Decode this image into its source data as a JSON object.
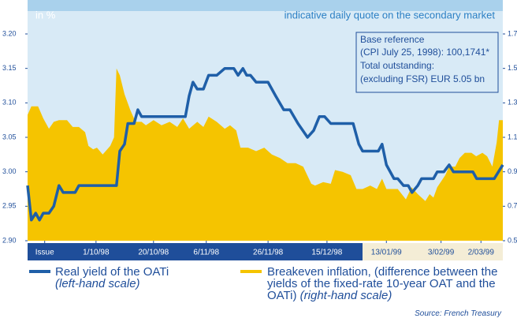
{
  "chart_data": {
    "type": "line_area",
    "title": "indicative daily quote on the secondary market",
    "y_label": "in %",
    "annotations": [
      "Base reference",
      "(CPI July 25, 1998): 100,1741*",
      "Total outstanding:",
      "(excluding FSR) EUR 5.05 bn"
    ],
    "source": "Source: French Treasury",
    "xlim": [
      0,
      100
    ],
    "xticks": [
      {
        "value": 3.6,
        "label": "Issue"
      },
      {
        "value": 14.4,
        "label": "1/10/98"
      },
      {
        "value": 26.5,
        "label": "20/10/98"
      },
      {
        "value": 37.6,
        "label": "6/11/98"
      },
      {
        "value": 50.6,
        "label": "26/11/98"
      },
      {
        "value": 63,
        "label": "15/12/98"
      },
      {
        "value": 75.5,
        "label": "13/01/99"
      },
      {
        "value": 87,
        "label": "3/02/99"
      },
      {
        "value": 95.4,
        "label": "2/03/99"
      }
    ],
    "ylim": [
      2.9,
      3.2
    ],
    "yticks": [
      {
        "value": 3.2,
        "label": "3.20"
      },
      {
        "value": 3.15,
        "label": "3.15"
      },
      {
        "value": 3.1,
        "label": "3.10"
      },
      {
        "value": 3.05,
        "label": "3.05"
      },
      {
        "value": 3,
        "label": "3.00"
      },
      {
        "value": 2.95,
        "label": "2.95"
      },
      {
        "value": 2.9,
        "label": "2.90"
      }
    ],
    "y2lim": [
      0.5,
      1.7
    ],
    "y2ticks": [
      1.7,
      1.5,
      1.3,
      1.1,
      0.9,
      0.7,
      0.5
    ],
    "grid": false,
    "series": [
      {
        "name": "Real yield of the OATi",
        "note": "(left-hand scale)",
        "kind": "line",
        "color": "#1f5fa8",
        "axis": "y",
        "x": [
          0,
          0.8,
          1.7,
          2.5,
          3.3,
          4.5,
          5.5,
          6.6,
          7.5,
          10.0,
          10.8,
          18.7,
          19.4,
          20.4,
          21.1,
          22.4,
          23.2,
          24.0,
          33.2,
          34.0,
          34.8,
          35.7,
          37.0,
          38.1,
          39.8,
          41.5,
          43.4,
          44.3,
          45.3,
          46.1,
          46.9,
          48.1,
          50.6,
          52.2,
          53.9,
          55.2,
          56.9,
          58.9,
          60.2,
          61.4,
          62.5,
          63.8,
          68.5,
          69.7,
          70.5,
          73.8,
          74.6,
          75.5,
          77.1,
          77.9,
          79.1,
          80.1,
          80.9,
          82.1,
          82.9,
          85.4,
          86.2,
          87.6,
          88.7,
          89.6,
          93.7,
          94.5,
          98.2,
          100
        ],
        "values": [
          2.98,
          2.93,
          2.94,
          2.93,
          2.94,
          2.94,
          2.95,
          2.98,
          2.97,
          2.97,
          2.98,
          2.98,
          3.03,
          3.04,
          3.07,
          3.07,
          3.09,
          3.08,
          3.08,
          3.11,
          3.13,
          3.12,
          3.12,
          3.14,
          3.14,
          3.15,
          3.15,
          3.14,
          3.15,
          3.14,
          3.14,
          3.13,
          3.13,
          3.11,
          3.09,
          3.09,
          3.07,
          3.05,
          3.06,
          3.08,
          3.08,
          3.07,
          3.07,
          3.04,
          3.03,
          3.03,
          3.04,
          3.01,
          2.99,
          2.99,
          2.98,
          2.98,
          2.97,
          2.98,
          2.99,
          2.99,
          3.0,
          3.0,
          3.01,
          3.0,
          3.0,
          2.99,
          2.99,
          3.01
        ]
      },
      {
        "name": "Breakeven inflation, (difference between the yields of the fixed-rate 10-year OAT and the OATi)",
        "note": "(right-hand scale)",
        "kind": "area",
        "color": "#f5c400",
        "axis": "y2",
        "x": [
          0,
          0.8,
          2.2,
          3.3,
          4.5,
          5.5,
          6.6,
          8.3,
          9.5,
          10.8,
          12.1,
          12.8,
          13.8,
          14.6,
          15.8,
          17.4,
          18.2,
          18.7,
          19.4,
          20.4,
          21.6,
          22.7,
          24.0,
          24.9,
          26.5,
          28.2,
          29.9,
          31.5,
          32.7,
          34.0,
          35.7,
          37.0,
          38.1,
          39.8,
          41.5,
          42.6,
          43.9,
          44.8,
          46.4,
          48.1,
          49.8,
          51.4,
          53.1,
          54.7,
          56.4,
          58.0,
          59.7,
          60.5,
          62.2,
          63.8,
          64.7,
          66.3,
          68.0,
          69.2,
          70.5,
          72.1,
          73.5,
          74.6,
          75.5,
          77.9,
          79.6,
          80.8,
          82.1,
          83.7,
          84.6,
          85.4,
          86.2,
          87.9,
          88.7,
          90.0,
          90.9,
          92.0,
          93.4,
          94.4,
          95.7,
          96.7,
          97.8,
          98.7,
          99.2,
          100
        ],
        "values": [
          1.23,
          1.28,
          1.28,
          1.21,
          1.15,
          1.19,
          1.2,
          1.2,
          1.16,
          1.16,
          1.13,
          1.05,
          1.03,
          1.04,
          1.0,
          1.05,
          1.1,
          1.5,
          1.46,
          1.35,
          1.26,
          1.19,
          1.19,
          1.17,
          1.2,
          1.17,
          1.19,
          1.16,
          1.21,
          1.15,
          1.19,
          1.16,
          1.22,
          1.19,
          1.15,
          1.17,
          1.14,
          1.04,
          1.04,
          1.02,
          1.04,
          1.0,
          0.98,
          0.95,
          0.95,
          0.93,
          0.83,
          0.82,
          0.84,
          0.83,
          0.91,
          0.9,
          0.88,
          0.8,
          0.8,
          0.82,
          0.8,
          0.86,
          0.8,
          0.8,
          0.74,
          0.81,
          0.77,
          0.73,
          0.77,
          0.75,
          0.81,
          0.88,
          0.93,
          0.93,
          0.98,
          1.01,
          1.01,
          0.99,
          1.01,
          0.99,
          0.93,
          1.07,
          1.2,
          1.2
        ]
      }
    ]
  }
}
